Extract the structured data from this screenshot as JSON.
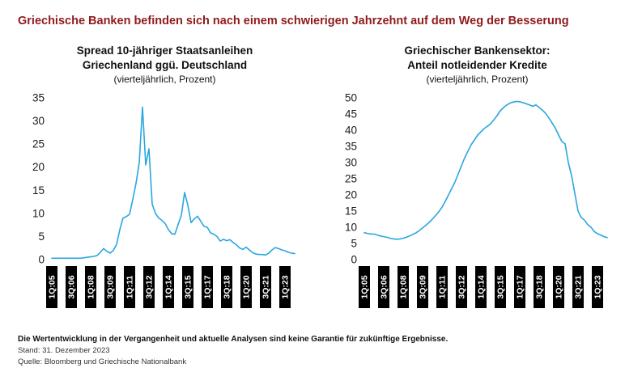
{
  "page": {
    "title": "Griechische Banken befinden sich nach einem schwierigen Jahrzehnt auf dem Weg der Besserung",
    "title_color": "#8f1a1d"
  },
  "footer": {
    "disclaimer": "Die Wertentwicklung in der Vergangenheit und aktuelle Analysen sind keine Garantie für zukünftige Ergebnisse.",
    "as_of": "Stand: 31. Dezember 2023",
    "source": "Quelle: Bloomberg und Griechische Nationalbank"
  },
  "chart_data": [
    {
      "type": "line",
      "title": "Spread 10-jähriger Staatsanleihen",
      "title_line2": "Griechenland ggü. Deutschland",
      "subtitle": "(vierteljährlich, Prozent)",
      "line_color": "#29a7df",
      "grid": false,
      "legend": "none",
      "frequency": "quarterly",
      "x_start": "2005Q1",
      "x_end": "2023Q4",
      "ylim": [
        0,
        35
      ],
      "y_ticks": [
        0,
        5,
        10,
        15,
        20,
        25,
        30,
        35
      ],
      "x_tick_labels": [
        "1Q:05",
        "3Q:06",
        "1Q:08",
        "3Q:09",
        "1Q:11",
        "3Q:12",
        "1Q:14",
        "3Q:15",
        "1Q:17",
        "3Q:18",
        "1Q:20",
        "3Q:21",
        "1Q:23"
      ],
      "x_tick_indices": [
        0,
        6,
        12,
        18,
        24,
        30,
        36,
        42,
        48,
        54,
        60,
        66,
        72
      ],
      "values": [
        0.3,
        0.3,
        0.3,
        0.3,
        0.3,
        0.3,
        0.3,
        0.3,
        0.3,
        0.3,
        0.4,
        0.5,
        0.6,
        0.7,
        0.9,
        1.6,
        2.4,
        1.8,
        1.4,
        2.0,
        3.3,
        6.5,
        9.0,
        9.3,
        9.8,
        13.0,
        16.5,
        21.0,
        33.0,
        20.5,
        24.0,
        12.0,
        10.0,
        9.0,
        8.5,
        7.8,
        6.5,
        5.6,
        5.5,
        7.6,
        9.6,
        14.5,
        11.8,
        8.0,
        8.8,
        9.4,
        8.3,
        7.2,
        7.0,
        5.8,
        5.5,
        5.0,
        4.0,
        4.4,
        4.1,
        4.3,
        3.7,
        3.2,
        2.5,
        2.2,
        2.7,
        2.1,
        1.5,
        1.2,
        1.1,
        1.1,
        1.0,
        1.4,
        2.1,
        2.6,
        2.4,
        2.1,
        1.9,
        1.6,
        1.4,
        1.3
      ]
    },
    {
      "type": "line",
      "title": "Griechischer Bankensektor:",
      "title_line2": "Anteil notleidender Kredite",
      "subtitle": "(vierteljährlich, Prozent)",
      "line_color": "#29a7df",
      "grid": false,
      "legend": "none",
      "frequency": "quarterly",
      "x_start": "2005Q1",
      "x_end": "2023Q4",
      "ylim": [
        0,
        50
      ],
      "y_ticks": [
        0,
        5,
        10,
        15,
        20,
        25,
        30,
        35,
        40,
        45,
        50
      ],
      "x_tick_labels": [
        "1Q:05",
        "3Q:06",
        "1Q:08",
        "3Q:09",
        "1Q:11",
        "3Q:12",
        "1Q:14",
        "3Q:15",
        "1Q:17",
        "3Q:18",
        "1Q:20",
        "3Q:21",
        "1Q:23"
      ],
      "x_tick_indices": [
        0,
        6,
        12,
        18,
        24,
        30,
        36,
        42,
        48,
        54,
        60,
        66,
        72
      ],
      "values": [
        8.3,
        8.1,
        7.9,
        7.9,
        7.6,
        7.3,
        7.1,
        6.9,
        6.6,
        6.4,
        6.3,
        6.4,
        6.6,
        6.9,
        7.3,
        7.8,
        8.3,
        9.0,
        9.8,
        10.6,
        11.5,
        12.5,
        13.6,
        14.8,
        16.2,
        18.0,
        20.0,
        22.0,
        24.0,
        26.5,
        29.0,
        31.5,
        33.5,
        35.5,
        37.0,
        38.5,
        39.5,
        40.5,
        41.2,
        42.0,
        43.2,
        44.5,
        46.0,
        47.0,
        47.8,
        48.4,
        48.7,
        48.9,
        48.8,
        48.5,
        48.2,
        47.8,
        47.4,
        47.8,
        47.0,
        46.2,
        45.2,
        43.8,
        42.2,
        40.6,
        38.5,
        36.5,
        35.8,
        30.0,
        26.0,
        20.5,
        15.0,
        13.0,
        12.2,
        10.8,
        10.0,
        8.7,
        8.0,
        7.6,
        7.1,
        6.8
      ]
    }
  ]
}
